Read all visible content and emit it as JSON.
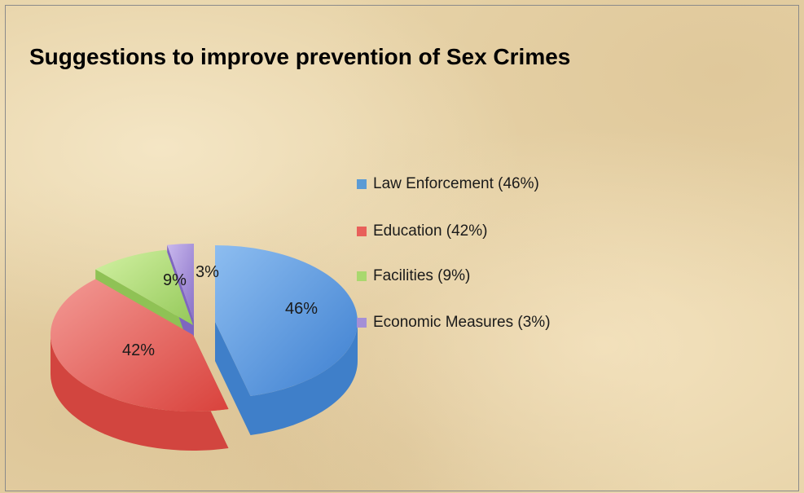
{
  "chart_data": {
    "type": "pie",
    "title": "Suggestions to improve prevention of Sex Crimes",
    "categories": [
      "Law Enforcement",
      "Education",
      "Facilities",
      "Economic Measures"
    ],
    "values": [
      46,
      42,
      9,
      3
    ],
    "data_labels": [
      "46%",
      "42%",
      "9%",
      "3%"
    ],
    "legend": [
      {
        "label": "Law Enforcement (46%)",
        "color": "#5b9bd5"
      },
      {
        "label": "Education (42%)",
        "color": "#e8605a"
      },
      {
        "label": "Facilities (9%)",
        "color": "#a9d86e"
      },
      {
        "label": "Economic Measures (3%)",
        "color": "#a48fd6"
      }
    ],
    "legend_placement": "right",
    "style": "3d-exploded"
  }
}
